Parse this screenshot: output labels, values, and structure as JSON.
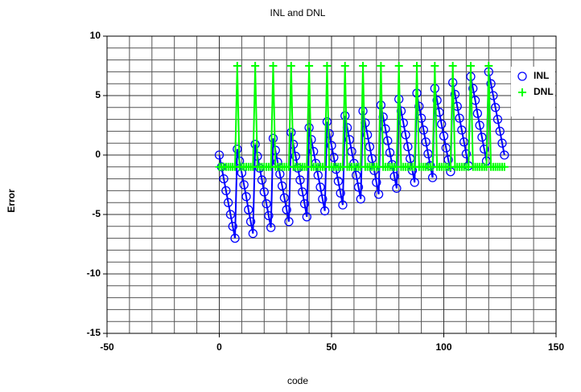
{
  "chart_data": {
    "type": "line",
    "title": "INL and DNL",
    "xlabel": "code",
    "ylabel": "Error",
    "x": [
      0,
      1,
      2,
      3,
      4,
      5,
      6,
      7,
      8,
      9,
      10,
      11,
      12,
      13,
      14,
      15,
      16,
      17,
      18,
      19,
      20,
      21,
      22,
      23,
      24,
      25,
      26,
      27,
      28,
      29,
      30,
      31,
      32,
      33,
      34,
      35,
      36,
      37,
      38,
      39,
      40,
      41,
      42,
      43,
      44,
      45,
      46,
      47,
      48,
      49,
      50,
      51,
      52,
      53,
      54,
      55,
      56,
      57,
      58,
      59,
      60,
      61,
      62,
      63,
      64,
      65,
      66,
      67,
      68,
      69,
      70,
      71,
      72,
      73,
      74,
      75,
      76,
      77,
      78,
      79,
      80,
      81,
      82,
      83,
      84,
      85,
      86,
      87,
      88,
      89,
      90,
      91,
      92,
      93,
      94,
      95,
      96,
      97,
      98,
      99,
      100,
      101,
      102,
      103,
      104,
      105,
      106,
      107,
      108,
      109,
      110,
      111,
      112,
      113,
      114,
      115,
      116,
      117,
      118,
      119,
      120,
      121,
      122,
      123,
      124,
      125,
      126,
      127
    ],
    "series": [
      {
        "name": "INL",
        "color": "#0000ff",
        "marker": "circle",
        "values": [
          0,
          -1,
          -2,
          -3,
          -4,
          -5,
          -6,
          -7,
          0.5,
          -0.5,
          -1.5,
          -2.5,
          -3.5,
          -4.6,
          -5.6,
          -6.6,
          0.9,
          -0.1,
          -1.1,
          -2.1,
          -3.1,
          -4.1,
          -5.1,
          -6.1,
          1.4,
          0.4,
          -0.6,
          -1.6,
          -2.6,
          -3.6,
          -4.6,
          -5.6,
          1.9,
          0.9,
          -0.1,
          -1.1,
          -2.1,
          -3.1,
          -4.1,
          -5.2,
          2.3,
          1.3,
          0.3,
          -0.7,
          -1.7,
          -2.7,
          -3.7,
          -4.7,
          2.8,
          1.8,
          0.8,
          -0.2,
          -1.2,
          -2.2,
          -3.2,
          -4.2,
          3.3,
          2.3,
          1.3,
          0.3,
          -0.7,
          -1.7,
          -2.7,
          -3.7,
          3.7,
          2.7,
          1.7,
          0.7,
          -0.3,
          -1.3,
          -2.3,
          -3.3,
          4.2,
          3.2,
          2.2,
          1.2,
          0.2,
          -0.8,
          -1.8,
          -2.8,
          4.7,
          3.7,
          2.7,
          1.7,
          0.7,
          -0.3,
          -1.3,
          -2.3,
          5.2,
          4.1,
          3.1,
          2.1,
          1.1,
          0.1,
          -0.9,
          -1.9,
          5.6,
          4.6,
          3.6,
          2.6,
          1.6,
          0.6,
          -0.4,
          -1.4,
          6.1,
          5.1,
          4.1,
          3.1,
          2.1,
          1.1,
          0.1,
          -0.9,
          6.6,
          5.6,
          4.6,
          3.5,
          2.5,
          1.5,
          0.5,
          -0.5,
          7.0,
          6.0,
          5.0,
          4.0,
          3.0,
          2.0,
          1.0,
          0.0
        ]
      },
      {
        "name": "DNL",
        "color": "#00ff00",
        "marker": "plus",
        "values": [
          -1,
          -1,
          -1,
          -1,
          -1,
          -1,
          -1,
          -1,
          7.5,
          -1,
          -1,
          -1,
          -1,
          -1,
          -1,
          -1,
          7.5,
          -1,
          -1,
          -1,
          -1,
          -1,
          -1,
          -1,
          7.5,
          -1,
          -1,
          -1,
          -1,
          -1,
          -1,
          -1,
          7.5,
          -1,
          -1,
          -1,
          -1,
          -1,
          -1,
          -1,
          7.5,
          -1,
          -1,
          -1,
          -1,
          -1,
          -1,
          -1,
          7.5,
          -1,
          -1,
          -1,
          -1,
          -1,
          -1,
          -1,
          7.5,
          -1,
          -1,
          -1,
          -1,
          -1,
          -1,
          -1,
          7.5,
          -1,
          -1,
          -1,
          -1,
          -1,
          -1,
          -1,
          7.5,
          -1,
          -1,
          -1,
          -1,
          -1,
          -1,
          -1,
          7.5,
          -1,
          -1,
          -1,
          -1,
          -1,
          -1,
          -1,
          7.5,
          -1,
          -1,
          -1,
          -1,
          -1,
          -1,
          -1,
          7.5,
          -1,
          -1,
          -1,
          -1,
          -1,
          -1,
          -1,
          7.5,
          -1,
          -1,
          -1,
          -1,
          -1,
          -1,
          -1,
          7.5,
          -1,
          -1,
          -1,
          -1,
          -1,
          -1,
          -1,
          7.5,
          -1,
          -1,
          -1,
          -1,
          -1,
          -1,
          -1
        ]
      }
    ],
    "xlim": [
      -50,
      150
    ],
    "xticks": [
      -50,
      0,
      50,
      100,
      150
    ],
    "ylim": [
      -15,
      10
    ],
    "yticks": [
      -15,
      -10,
      -5,
      0,
      5,
      10
    ],
    "xminorticks": [
      -40,
      -30,
      -20,
      -10,
      10,
      20,
      30,
      40,
      60,
      70,
      80,
      90,
      110,
      120,
      130,
      140
    ],
    "yminorticks": [
      -14,
      -13,
      -12,
      -11,
      -9,
      -8,
      -7,
      -6,
      -4,
      -3,
      -2,
      -1,
      1,
      2,
      3,
      4,
      6,
      7,
      8,
      9
    ],
    "grid": true,
    "legend": "upper right"
  }
}
